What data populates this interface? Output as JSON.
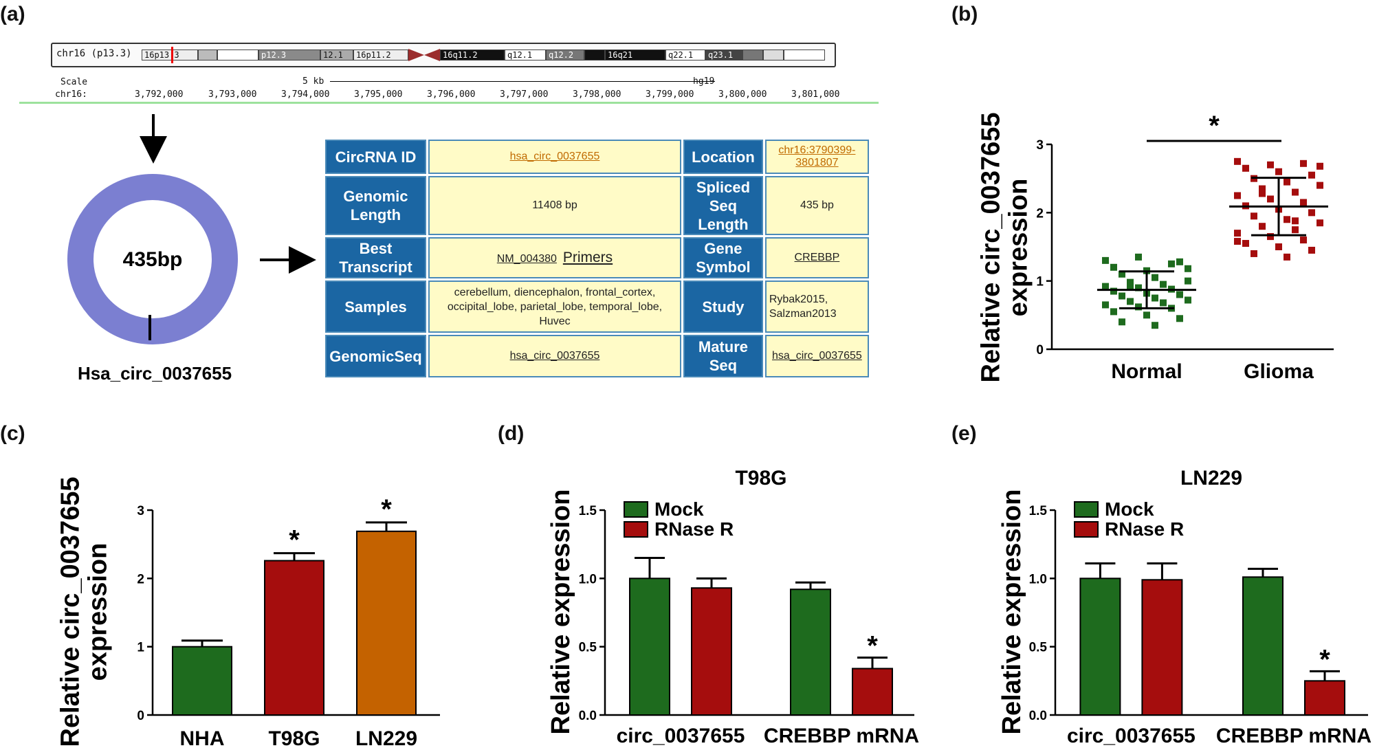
{
  "panels": {
    "a": "(a)",
    "b": "(b)",
    "c": "(c)",
    "d": "(d)",
    "e": "(e)"
  },
  "genome_browser": {
    "chrom_label": "chr16 (p13.3)",
    "bands": [
      "16p13.3",
      "p12.3",
      "12.1",
      "16p11.2",
      "16q11.2",
      "q12.1",
      "q12.2",
      "16q21",
      "q22.1",
      "q23.1"
    ],
    "scale_label": "Scale",
    "chr_label": "chr16:",
    "scale_bar": "5 kb",
    "assembly": "hg19",
    "positions": [
      "3,792,000",
      "3,793,000",
      "3,794,000",
      "3,795,000",
      "3,796,000",
      "3,797,000",
      "3,798,000",
      "3,799,000",
      "3,800,000",
      "3,801,000"
    ]
  },
  "circle": {
    "center_label": "435bp",
    "name": "Hsa_circ_0037655",
    "ring_color": "#7b7fd1"
  },
  "info_table": {
    "rows": [
      {
        "h1": "CircRNA ID",
        "v1": "hsa_circ_0037655",
        "h2": "Location",
        "v2": "chr16:3790399-3801807"
      },
      {
        "h1": "Genomic Length",
        "v1": "11408 bp",
        "h2": "Spliced Seq Length",
        "v2": "435 bp"
      },
      {
        "h1": "Best Transcript",
        "v1": "NM_004380",
        "v1b": "Primers",
        "h2": "Gene Symbol",
        "v2": "CREBBP"
      },
      {
        "h1": "Samples",
        "v1": "cerebellum, diencephalon, frontal_cortex, occipital_lobe, parietal_lobe, temporal_lobe, Huvec",
        "h2": "Study",
        "v2": "Rybak2015, Salzman2013"
      },
      {
        "h1": "GenomicSeq",
        "v1": "hsa_circ_0037655",
        "h2": "Mature Seq",
        "v2": "hsa_circ_0037655"
      }
    ]
  },
  "colors": {
    "green": "#1e6b1e",
    "red": "#a50d0d",
    "orange": "#c46200",
    "header_blue": "#1b66a3",
    "cell_yellow": "#fffbc7"
  },
  "chart_data": [
    {
      "id": "b",
      "type": "scatter",
      "ylabel": "Relative circ_0037655 expression",
      "ylim": [
        0,
        3
      ],
      "yticks": [
        "0",
        "1",
        "2",
        "3"
      ],
      "categories": [
        "Normal",
        "Glioma"
      ],
      "significance": "*",
      "series": [
        {
          "name": "Normal",
          "color": "#1e6b1e",
          "mean": 0.87,
          "sd": 0.27,
          "values": [
            1.3,
            1.35,
            1.25,
            1.2,
            1.15,
            1.28,
            1.1,
            1.05,
            1.0,
            0.98,
            0.95,
            0.92,
            0.9,
            0.88,
            0.85,
            0.82,
            0.8,
            0.78,
            0.75,
            0.72,
            0.7,
            0.68,
            0.65,
            0.62,
            0.6,
            0.55,
            0.5,
            0.45,
            0.4,
            0.35,
            1.18,
            0.93
          ]
        },
        {
          "name": "Glioma",
          "color": "#a50d0d",
          "mean": 2.09,
          "sd": 0.42,
          "values": [
            2.75,
            2.7,
            2.72,
            2.65,
            2.6,
            2.55,
            2.5,
            2.45,
            2.4,
            2.35,
            2.3,
            2.25,
            2.2,
            2.15,
            2.1,
            2.05,
            2.0,
            1.95,
            1.9,
            1.85,
            1.8,
            1.75,
            1.7,
            1.65,
            1.6,
            1.55,
            1.5,
            1.45,
            1.4,
            1.35,
            2.68,
            2.28,
            1.88,
            1.58
          ]
        }
      ]
    },
    {
      "id": "c",
      "type": "bar",
      "ylabel": "Relative circ_0037655 expression",
      "ylim": [
        0,
        3
      ],
      "yticks": [
        "0",
        "1",
        "2",
        "3"
      ],
      "categories": [
        "NHA",
        "T98G",
        "LN229"
      ],
      "values": [
        1.0,
        2.26,
        2.69
      ],
      "errors": [
        0.09,
        0.11,
        0.13
      ],
      "colors": [
        "#1e6b1e",
        "#a50d0d",
        "#c46200"
      ],
      "marks": [
        "",
        "*",
        "*"
      ]
    },
    {
      "id": "d",
      "type": "bar",
      "title": "T98G",
      "ylabel": "Relative expression",
      "ylim": [
        0,
        1.5
      ],
      "yticks": [
        "0.0",
        "0.5",
        "1.0",
        "1.5"
      ],
      "categories": [
        "circ_0037655",
        "CREBBP mRNA"
      ],
      "series": [
        {
          "name": "Mock",
          "color": "#1e6b1e",
          "values": [
            1.0,
            0.92
          ],
          "errors": [
            0.15,
            0.05
          ],
          "marks": [
            "",
            ""
          ]
        },
        {
          "name": "RNase R",
          "color": "#a50d0d",
          "values": [
            0.93,
            0.34
          ],
          "errors": [
            0.07,
            0.08
          ],
          "marks": [
            "",
            "*"
          ]
        }
      ]
    },
    {
      "id": "e",
      "type": "bar",
      "title": "LN229",
      "ylabel": "Relative expression",
      "ylim": [
        0,
        1.5
      ],
      "yticks": [
        "0.0",
        "0.5",
        "1.0",
        "1.5"
      ],
      "categories": [
        "circ_0037655",
        "CREBBP mRNA"
      ],
      "series": [
        {
          "name": "Mock",
          "color": "#1e6b1e",
          "values": [
            1.0,
            1.01
          ],
          "errors": [
            0.11,
            0.06
          ],
          "marks": [
            "",
            ""
          ]
        },
        {
          "name": "RNase R",
          "color": "#a50d0d",
          "values": [
            0.99,
            0.25
          ],
          "errors": [
            0.12,
            0.07
          ],
          "marks": [
            "",
            "*"
          ]
        }
      ]
    }
  ]
}
